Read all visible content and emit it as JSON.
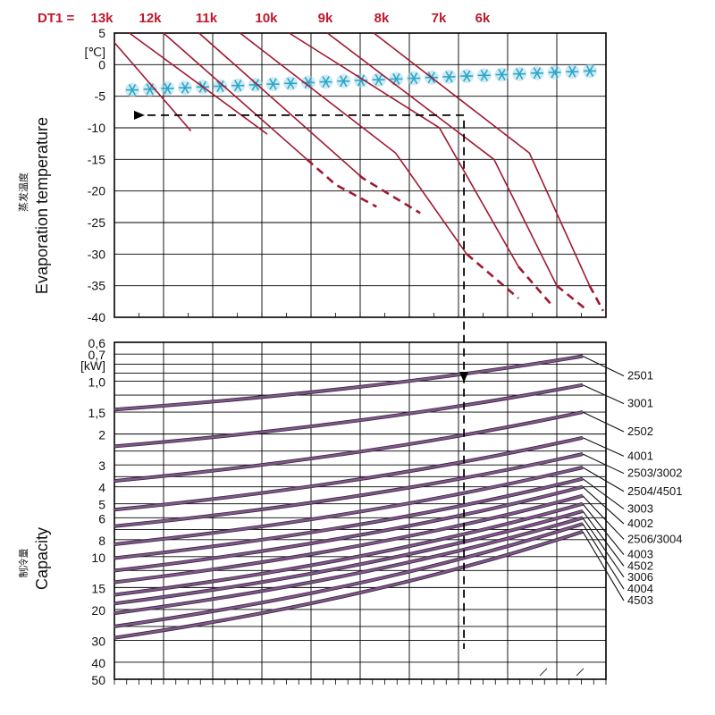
{
  "colors": {
    "dt_text": "#c0182c",
    "dt_curve": "#a01830",
    "capacity_curve": "#7e5a86",
    "capacity_curve_edge": "#3c2244",
    "frost_icon": "#2aa7c8",
    "frost_band": "#a8d8ea",
    "grid": "#000000",
    "guide": "#000000"
  },
  "chart_data": [
    {
      "type": "line",
      "title": "",
      "dt_prefix": "DT1 =",
      "dt_labels": [
        "13k",
        "12k",
        "11k",
        "10k",
        "9k",
        "8k",
        "7k",
        "6k"
      ],
      "ylabel_cn": "蒸发温度",
      "ylabel": "Evaporation temperature",
      "unit": "[℃]",
      "yticks": [
        5,
        0,
        -5,
        -10,
        -15,
        -20,
        -25,
        -30,
        -35,
        -40
      ],
      "ylim": [
        -40,
        5
      ],
      "series": [
        {
          "name": "13k",
          "points": [
            [
              0,
              3.5
            ],
            [
              2.8,
              -10.5
            ]
          ],
          "dashed_below": null
        },
        {
          "name": "12k",
          "points": [
            [
              0.55,
              5
            ],
            [
              5.6,
              -11
            ]
          ],
          "dashed_below": -11
        },
        {
          "name": "11k",
          "points": [
            [
              1.8,
              5
            ],
            [
              8.1,
              -19
            ],
            [
              9.6,
              -22.5
            ]
          ],
          "dashed_below": -15
        },
        {
          "name": "10k",
          "points": [
            [
              3.1,
              5
            ],
            [
              9.1,
              -18
            ],
            [
              11.2,
              -23.5
            ]
          ],
          "dashed_below": -17.5
        },
        {
          "name": "9k",
          "points": [
            [
              4.6,
              5
            ],
            [
              10.3,
              -14
            ],
            [
              12.9,
              -30
            ],
            [
              14.8,
              -37
            ]
          ],
          "dashed_below": -30
        },
        {
          "name": "8k",
          "points": [
            [
              6.4,
              5
            ],
            [
              11.9,
              -10
            ],
            [
              14.8,
              -32
            ],
            [
              16.0,
              -38
            ]
          ],
          "dashed_below": -32
        },
        {
          "name": "7k",
          "points": [
            [
              7.8,
              5
            ],
            [
              13.9,
              -15
            ],
            [
              16.2,
              -35
            ],
            [
              17.2,
              -38.5
            ]
          ],
          "dashed_below": -35
        },
        {
          "name": "6k",
          "points": [
            [
              9.5,
              5
            ],
            [
              15.2,
              -14
            ],
            [
              17.4,
              -35
            ],
            [
              17.9,
              -39
            ]
          ],
          "dashed_below": -35
        }
      ],
      "frost_band": {
        "y_from": -4.3,
        "y_to": -0.7,
        "icon": "snowflake-icon",
        "count": 27
      },
      "guide": {
        "from_y": -8,
        "turn_x": 12.8,
        "direction": "right-then-down"
      }
    },
    {
      "type": "line",
      "title": "",
      "ylabel_cn": "制冷量",
      "ylabel": "Capacity",
      "unit": "[kW]",
      "yticks": [
        "0,6",
        "0,7",
        "1,0",
        "1,5",
        "2",
        "3",
        "4",
        "5",
        "6",
        "8",
        "10",
        "15",
        "20",
        "30",
        "40",
        "50"
      ],
      "scale": "log",
      "series": [
        {
          "name": "2501",
          "start": 1.45,
          "end": 0.72,
          "label_y": 0.89
        },
        {
          "name": "3001",
          "start": 2.35,
          "end": 1.05,
          "label_y": 1.28
        },
        {
          "name": "2502",
          "start": 3.7,
          "end": 1.5,
          "label_y": 1.85
        },
        {
          "name": "4001",
          "start": 5.4,
          "end": 2.1,
          "label_y": 2.55
        },
        {
          "name": "2503/3002",
          "start": 6.7,
          "end": 2.6,
          "label_y": 3.2
        },
        {
          "name": "2504/4501",
          "start": 8.5,
          "end": 3.1,
          "label_y": 4.05
        },
        {
          "name": "3003",
          "start": 10.2,
          "end": 3.6,
          "label_y": 5.1
        },
        {
          "name": "4002",
          "start": 12.0,
          "end": 4.0,
          "label_y": 6.2
        },
        {
          "name": "2506/3004",
          "start": 14.0,
          "end": 4.5,
          "label_y": 7.6
        },
        {
          "name": "4003",
          "start": 16.5,
          "end": 5.0,
          "label_y": 9.3
        },
        {
          "name": "4502",
          "start": 18.5,
          "end": 5.5,
          "label_y": 10.8
        },
        {
          "name": "3006",
          "start": 21.0,
          "end": 6.0,
          "label_y": 12.5
        },
        {
          "name": "4004",
          "start": 25.0,
          "end": 6.5,
          "label_y": 14.6
        },
        {
          "name": "4503",
          "start": 29.0,
          "end": 7.2,
          "label_y": 17.0
        }
      ]
    }
  ]
}
